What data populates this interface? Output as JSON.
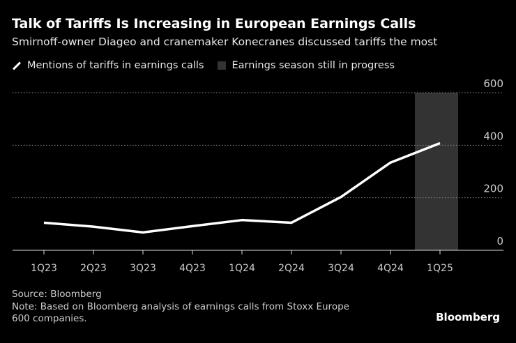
{
  "header": {
    "title": "Talk of Tariffs Is Increasing in European Earnings Calls",
    "subtitle": "Smirnoff-owner Diageo and cranemaker Konecranes discussed tariffs the most"
  },
  "chart_data": {
    "type": "line",
    "categories": [
      "1Q23",
      "2Q23",
      "3Q23",
      "4Q23",
      "1Q24",
      "2Q24",
      "3Q24",
      "4Q24",
      "1Q25"
    ],
    "series": [
      {
        "name": "Mentions of tariffs in earnings calls",
        "values": [
          105,
          90,
          68,
          92,
          115,
          105,
          203,
          334,
          408
        ],
        "color": "#ffffff"
      }
    ],
    "shaded_region": {
      "name": "Earnings season still in progress",
      "category": "1Q25",
      "color": "#333333"
    },
    "ylim": [
      0,
      600
    ],
    "yticks": [
      "0",
      "200",
      "400",
      "600"
    ],
    "ytick_values": [
      0,
      200,
      400,
      600
    ],
    "grid": true,
    "legend": "top-left"
  },
  "footer": {
    "source": "Source: Bloomberg",
    "note1": "Note: Based on Bloomberg analysis of earnings calls from Stoxx Europe",
    "note2": "600 companies.",
    "brand": "Bloomberg"
  }
}
